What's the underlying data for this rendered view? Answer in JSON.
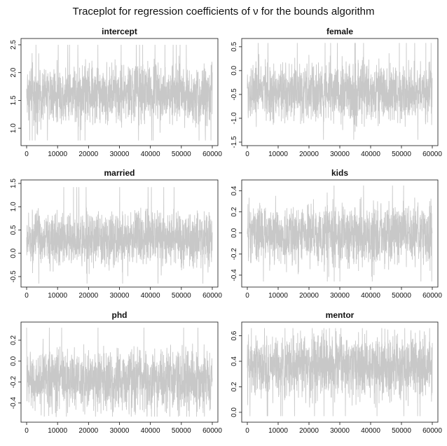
{
  "title": "Traceplot for regression coefficients of ν for the bounds algorithm",
  "colors": {
    "trace": "#c8c8c8",
    "axis": "#111111"
  },
  "chart_data": [
    {
      "type": "line",
      "title": "intercept",
      "xlabel": "",
      "ylabel": "",
      "xlim": [
        0,
        60000
      ],
      "ylim": [
        0.75,
        2.55
      ],
      "xticks": [
        0,
        10000,
        20000,
        30000,
        40000,
        50000,
        60000
      ],
      "xtick_labels": [
        "0",
        "10000",
        "20000",
        "30000",
        "40000",
        "50000",
        "60000"
      ],
      "yticks": [
        1.0,
        1.5,
        2.0,
        2.5
      ],
      "ytick_labels": [
        "1.0",
        "1.5",
        "2.0",
        "2.5"
      ],
      "series": [
        {
          "center": 1.62,
          "band_low": 1.2,
          "band_high": 2.05,
          "min": 0.78,
          "max": 2.5
        }
      ]
    },
    {
      "type": "line",
      "title": "female",
      "xlabel": "",
      "ylabel": "",
      "xlim": [
        0,
        60000
      ],
      "ylim": [
        -1.5,
        0.6
      ],
      "xticks": [
        0,
        10000,
        20000,
        30000,
        40000,
        50000,
        60000
      ],
      "xtick_labels": [
        "0",
        "10000",
        "20000",
        "30000",
        "40000",
        "50000",
        "60000"
      ],
      "yticks": [
        -1.5,
        -1.0,
        -0.5,
        0.0,
        0.5
      ],
      "ytick_labels": [
        "-1.5",
        "-1.0",
        "-0.5",
        "0.0",
        "0.5"
      ],
      "series": [
        {
          "center": -0.45,
          "band_low": -0.9,
          "band_high": 0.05,
          "min": -1.45,
          "max": 0.58
        }
      ]
    },
    {
      "type": "line",
      "title": "married",
      "xlabel": "",
      "ylabel": "",
      "xlim": [
        0,
        60000
      ],
      "ylim": [
        -0.65,
        1.5
      ],
      "xticks": [
        0,
        10000,
        20000,
        30000,
        40000,
        50000,
        60000
      ],
      "xtick_labels": [
        "0",
        "10000",
        "20000",
        "30000",
        "40000",
        "50000",
        "60000"
      ],
      "yticks": [
        -0.5,
        0.0,
        0.5,
        1.0,
        1.5
      ],
      "ytick_labels": [
        "-0.5",
        "0.0",
        "0.5",
        "1.0",
        "1.5"
      ],
      "series": [
        {
          "center": 0.3,
          "band_low": -0.15,
          "band_high": 0.75,
          "min": -0.65,
          "max": 1.42
        }
      ]
    },
    {
      "type": "line",
      "title": "kids",
      "xlabel": "",
      "ylabel": "",
      "xlim": [
        0,
        60000
      ],
      "ylim": [
        -0.48,
        0.47
      ],
      "xticks": [
        0,
        10000,
        20000,
        30000,
        40000,
        50000,
        60000
      ],
      "xtick_labels": [
        "0",
        "10000",
        "20000",
        "30000",
        "40000",
        "50000",
        "60000"
      ],
      "yticks": [
        -0.4,
        -0.2,
        0.0,
        0.2,
        0.4
      ],
      "ytick_labels": [
        "-0.4",
        "-0.2",
        "0.0",
        "0.2",
        "0.4"
      ],
      "series": [
        {
          "center": -0.02,
          "band_low": -0.25,
          "band_high": 0.2,
          "min": -0.46,
          "max": 0.45
        }
      ]
    },
    {
      "type": "line",
      "title": "phd",
      "xlabel": "",
      "ylabel": "",
      "xlim": [
        0,
        60000
      ],
      "ylim": [
        -0.55,
        0.34
      ],
      "xticks": [
        0,
        10000,
        20000,
        30000,
        40000,
        50000,
        60000
      ],
      "xtick_labels": [
        "0",
        "10000",
        "20000",
        "30000",
        "40000",
        "50000",
        "60000"
      ],
      "yticks": [
        -0.4,
        -0.2,
        0.0,
        0.2
      ],
      "ytick_labels": [
        "-0.4",
        "-0.2",
        "0.0",
        "0.2"
      ],
      "series": [
        {
          "center": -0.18,
          "band_low": -0.42,
          "band_high": 0.05,
          "min": -0.53,
          "max": 0.32
        }
      ]
    },
    {
      "type": "line",
      "title": "mentor",
      "xlabel": "",
      "ylabel": "",
      "xlim": [
        0,
        60000
      ],
      "ylim": [
        -0.05,
        0.68
      ],
      "xticks": [
        0,
        10000,
        20000,
        30000,
        40000,
        50000,
        60000
      ],
      "xtick_labels": [
        "0",
        "10000",
        "20000",
        "30000",
        "40000",
        "50000",
        "60000"
      ],
      "yticks": [
        0.0,
        0.2,
        0.4,
        0.6
      ],
      "ytick_labels": [
        "0.0",
        "0.2",
        "0.4",
        "0.6"
      ],
      "series": [
        {
          "center": 0.36,
          "band_low": 0.17,
          "band_high": 0.55,
          "min": -0.03,
          "max": 0.66
        }
      ]
    }
  ]
}
